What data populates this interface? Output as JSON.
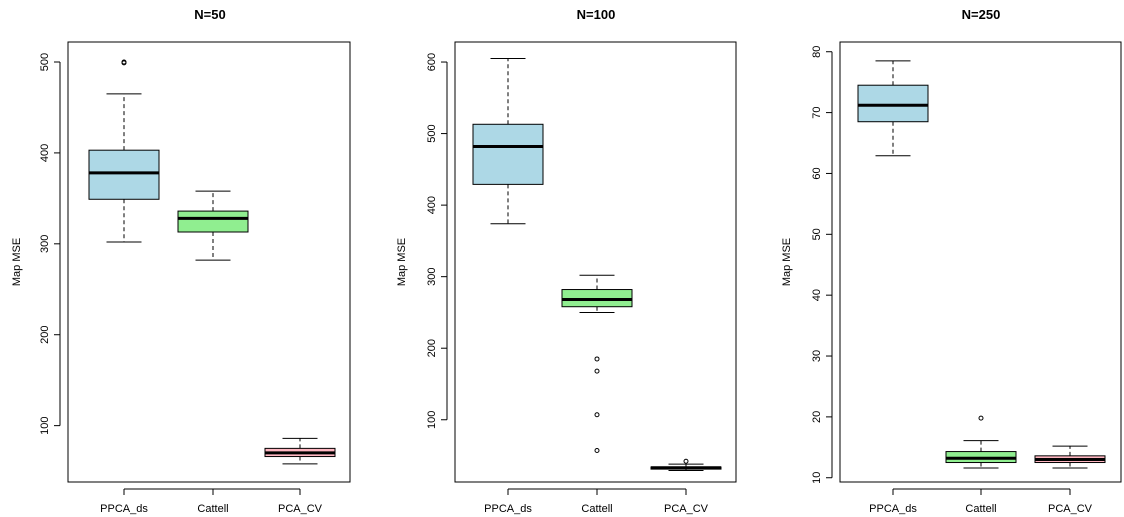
{
  "chart_data": [
    {
      "type": "boxplot",
      "title": "N=50",
      "xlabel": "",
      "ylabel": "Map MSE",
      "ylim": [
        38,
        522
      ],
      "yticks": [
        100,
        200,
        300,
        400,
        500
      ],
      "categories": [
        "PPCA_ds",
        "Cattell",
        "PCA_CV"
      ],
      "boxes": [
        {
          "category": "PPCA_ds",
          "color": "#add8e6",
          "whisker_low": 302,
          "q1": 349,
          "median": 378,
          "q3": 403,
          "whisker_high": 465,
          "outliers": [
            499,
            500
          ]
        },
        {
          "category": "Cattell",
          "color": "#90ee90",
          "whisker_low": 282,
          "q1": 313,
          "median": 328,
          "q3": 336,
          "whisker_high": 358,
          "outliers": []
        },
        {
          "category": "PCA_CV",
          "color": "#ffb6c1",
          "whisker_low": 58,
          "q1": 66,
          "median": 70,
          "q3": 75,
          "whisker_high": 86,
          "outliers": []
        }
      ]
    },
    {
      "type": "boxplot",
      "title": "N=100",
      "xlabel": "",
      "ylabel": "Map MSE",
      "ylim": [
        13,
        628
      ],
      "yticks": [
        100,
        200,
        300,
        400,
        500,
        600
      ],
      "categories": [
        "PPCA_ds",
        "Cattell",
        "PCA_CV"
      ],
      "boxes": [
        {
          "category": "PPCA_ds",
          "color": "#add8e6",
          "whisker_low": 374,
          "q1": 429,
          "median": 482,
          "q3": 513,
          "whisker_high": 605,
          "outliers": []
        },
        {
          "category": "Cattell",
          "color": "#90ee90",
          "whisker_low": 250,
          "q1": 258,
          "median": 268,
          "q3": 282,
          "whisker_high": 302,
          "outliers": [
            185,
            168,
            107,
            57
          ]
        },
        {
          "category": "PCA_CV",
          "color": "#ffb6c1",
          "whisker_low": 29,
          "q1": 31,
          "median": 33,
          "q3": 34,
          "whisker_high": 38,
          "outliers": [
            42
          ]
        }
      ]
    },
    {
      "type": "boxplot",
      "title": "N=250",
      "xlabel": "",
      "ylabel": "Map MSE",
      "ylim": [
        9.3,
        81.6
      ],
      "yticks": [
        10,
        20,
        30,
        40,
        50,
        60,
        70,
        80
      ],
      "categories": [
        "PPCA_ds",
        "Cattell",
        "PCA_CV"
      ],
      "boxes": [
        {
          "category": "PPCA_ds",
          "color": "#add8e6",
          "whisker_low": 62.9,
          "q1": 68.5,
          "median": 71.2,
          "q3": 74.5,
          "whisker_high": 78.5,
          "outliers": []
        },
        {
          "category": "Cattell",
          "color": "#90ee90",
          "whisker_low": 11.6,
          "q1": 12.5,
          "median": 13.2,
          "q3": 14.3,
          "whisker_high": 16.1,
          "outliers": [
            19.8
          ]
        },
        {
          "category": "PCA_CV",
          "color": "#ffb6c1",
          "whisker_low": 11.6,
          "q1": 12.5,
          "median": 13.0,
          "q3": 13.6,
          "whisker_high": 15.2,
          "outliers": []
        }
      ]
    }
  ]
}
